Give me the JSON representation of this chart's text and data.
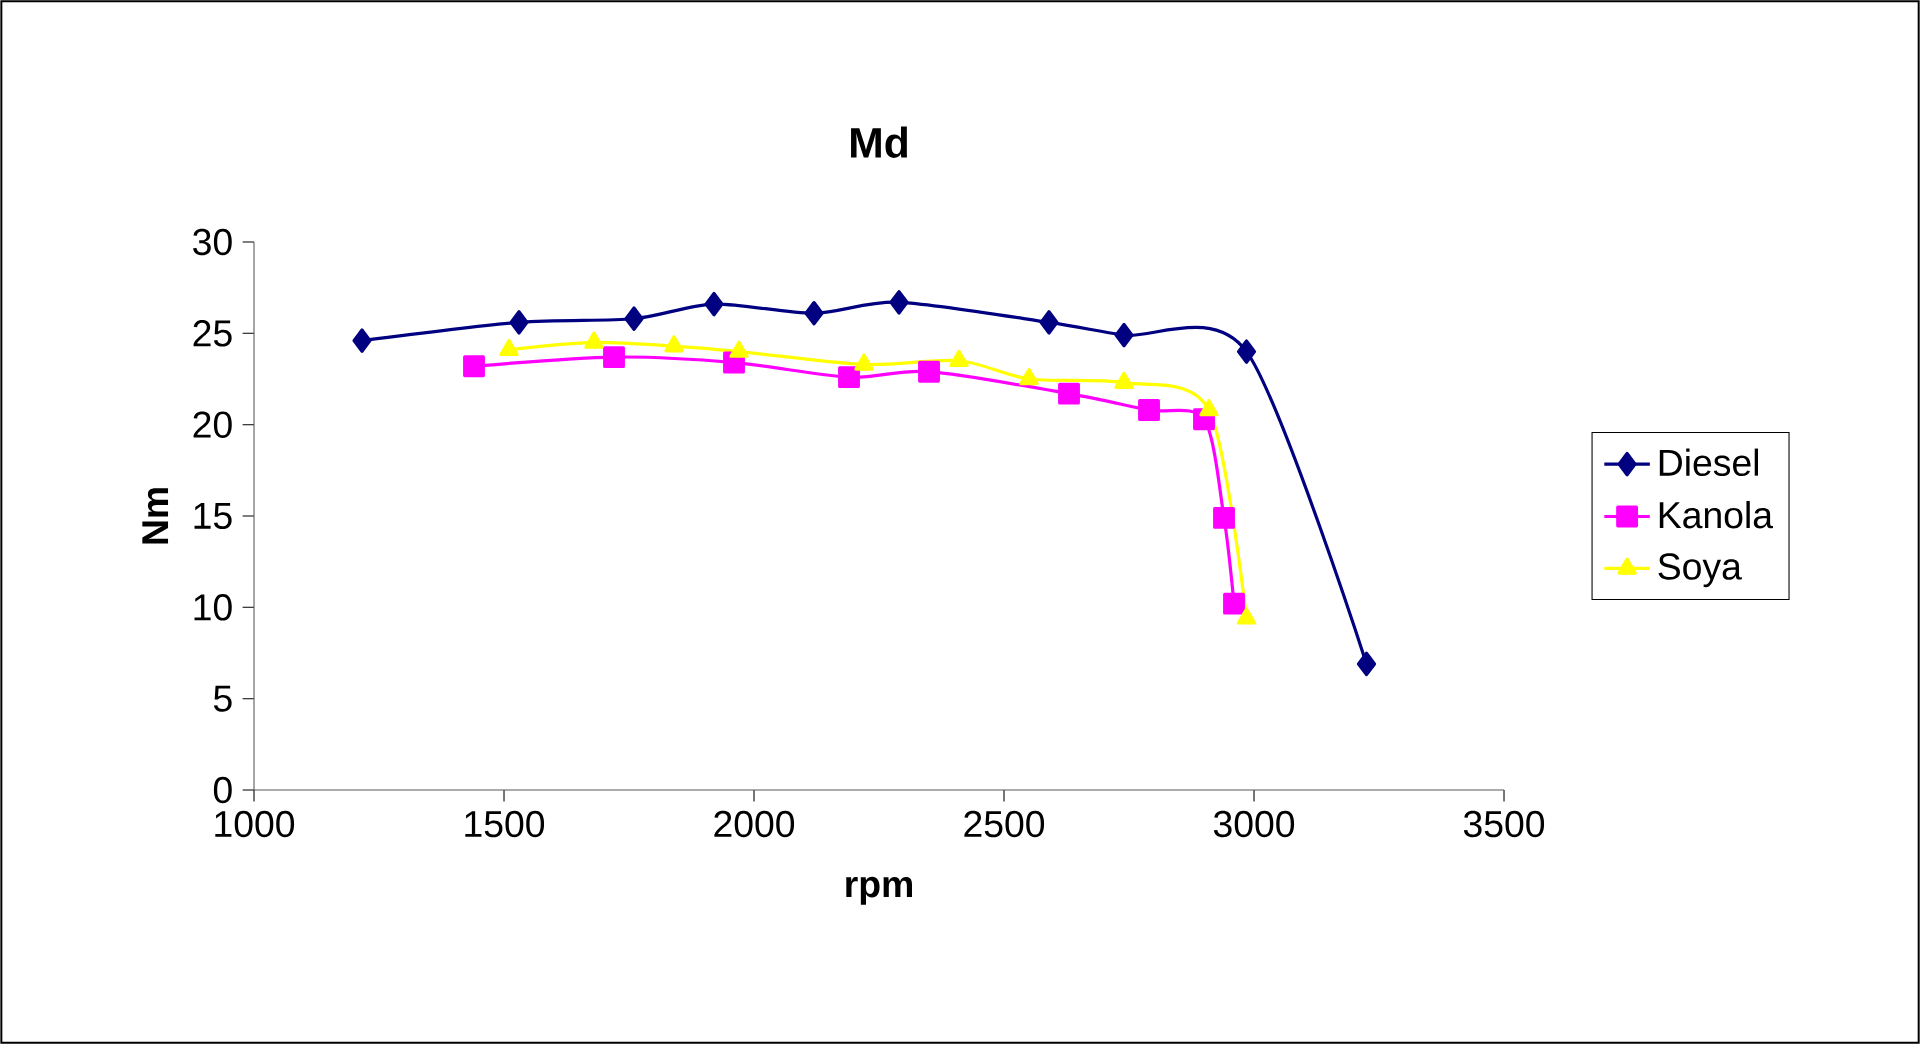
{
  "chart_data": {
    "type": "line",
    "title": "Md",
    "xlabel": "rpm",
    "ylabel": "Nm",
    "xlim": [
      1000,
      3500
    ],
    "xticks": [
      1000,
      1500,
      2000,
      2500,
      3000,
      3500
    ],
    "ylim": [
      0,
      30
    ],
    "yticks": [
      0,
      5,
      10,
      15,
      20,
      25,
      30
    ],
    "grid": false,
    "legend": "right",
    "series": [
      {
        "name": "Diesel",
        "color": "#000080",
        "marker": "diamond",
        "x": [
          1216,
          1530,
          1760,
          1920,
          2120,
          2290,
          2590,
          2740,
          2985,
          3225
        ],
        "values": [
          24.6,
          25.6,
          25.8,
          26.6,
          26.1,
          26.7,
          25.6,
          24.9,
          24.0,
          6.9
        ]
      },
      {
        "name": "Kanola",
        "color": "#ff00ff",
        "marker": "square",
        "x": [
          1440,
          1720,
          1960,
          2190,
          2350,
          2630,
          2790,
          2900,
          2940,
          2960
        ],
        "values": [
          23.2,
          23.7,
          23.4,
          22.6,
          22.9,
          21.7,
          20.8,
          20.3,
          14.9,
          10.2
        ]
      },
      {
        "name": "Soya",
        "color": "#ffff00",
        "marker": "triangle",
        "x": [
          1510,
          1680,
          1840,
          1970,
          2220,
          2410,
          2550,
          2740,
          2910,
          2985
        ],
        "values": [
          24.1,
          24.5,
          24.3,
          24.0,
          23.3,
          23.5,
          22.5,
          22.3,
          20.8,
          9.4
        ]
      }
    ]
  }
}
